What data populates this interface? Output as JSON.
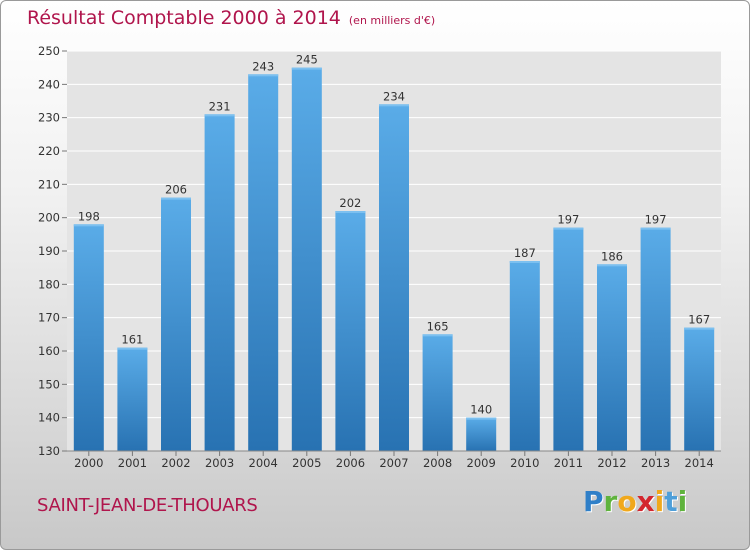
{
  "header": {
    "title": "Résultat Comptable 2000 à 2014",
    "unit": "(en milliers d'€)"
  },
  "footer": {
    "commune": "SAINT-JEAN-DE-THOUARS"
  },
  "logo": {
    "letters": [
      "P",
      "r",
      "o",
      "x",
      "i",
      "t",
      "i"
    ]
  },
  "colors": {
    "title": "#b0154c",
    "bar_top": "#5aace8",
    "bar_bottom": "#2872b2",
    "logo_letters": [
      "#2f7fc8",
      "#5fb33d",
      "#f0a81c",
      "#d3262e",
      "#f0a81c",
      "#4f9fd9",
      "#5fb33d"
    ]
  },
  "chart_data": {
    "type": "bar",
    "title": "Résultat Comptable 2000 à 2014",
    "subtitle": "(en milliers d'€)",
    "xlabel": "",
    "ylabel": "",
    "categories": [
      "2000",
      "2001",
      "2002",
      "2003",
      "2004",
      "2005",
      "2006",
      "2007",
      "2008",
      "2009",
      "2010",
      "2011",
      "2012",
      "2013",
      "2014"
    ],
    "values": [
      198,
      161,
      206,
      231,
      243,
      245,
      202,
      234,
      165,
      140,
      187,
      197,
      186,
      197,
      167
    ],
    "ylim": [
      130,
      250
    ],
    "yticks": [
      130,
      140,
      150,
      160,
      170,
      180,
      190,
      200,
      210,
      220,
      230,
      240,
      250
    ],
    "grid": true,
    "legend": "none"
  }
}
